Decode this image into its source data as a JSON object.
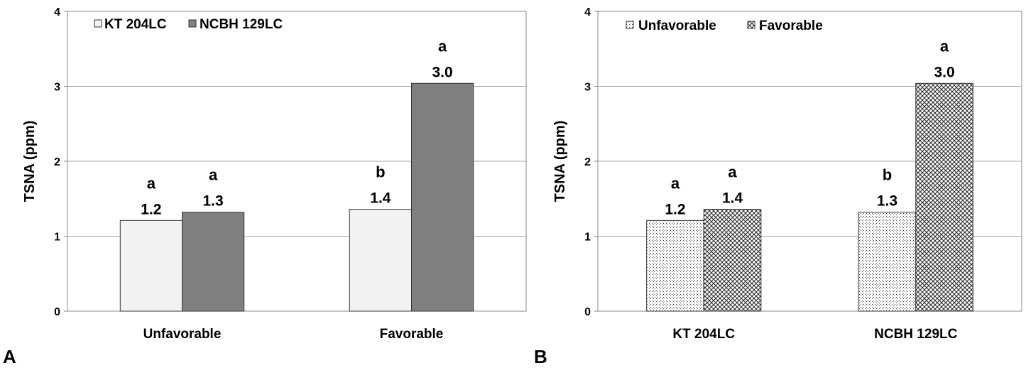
{
  "chart_data": [
    {
      "type": "bar",
      "panel": "A",
      "ylabel": "TSNA (ppm)",
      "ylim": [
        0,
        4
      ],
      "yticks": [
        "0",
        "1",
        "2",
        "3",
        "4"
      ],
      "grid": true,
      "legend_position": "top-left",
      "categories": [
        "Unfavorable",
        "Favorable"
      ],
      "series": [
        {
          "name": "KT 204LC",
          "color": "#f2f2f2",
          "pattern": "solid",
          "values": [
            1.21,
            1.36
          ],
          "labels": [
            "1.2",
            "1.4"
          ],
          "letters": [
            "a",
            "b"
          ]
        },
        {
          "name": "NCBH 129LC",
          "color": "#808080",
          "pattern": "solid",
          "values": [
            1.32,
            3.04
          ],
          "labels": [
            "1.3",
            "3.0"
          ],
          "letters": [
            "a",
            "a"
          ]
        }
      ]
    },
    {
      "type": "bar",
      "panel": "B",
      "ylabel": "TSNA (ppm)",
      "ylim": [
        0,
        4
      ],
      "yticks": [
        "0",
        "1",
        "2",
        "3",
        "4"
      ],
      "grid": true,
      "legend_position": "top-left",
      "categories": [
        "KT 204LC",
        "NCBH 129LC"
      ],
      "series": [
        {
          "name": "Unfavorable",
          "color": "#ffffff",
          "pattern": "dots",
          "values": [
            1.21,
            1.32
          ],
          "labels": [
            "1.2",
            "1.3"
          ],
          "letters": [
            "a",
            "b"
          ]
        },
        {
          "name": "Favorable",
          "color": "#ffffff",
          "pattern": "checker",
          "values": [
            1.36,
            3.04
          ],
          "labels": [
            "1.4",
            "3.0"
          ],
          "letters": [
            "a",
            "a"
          ]
        }
      ]
    }
  ]
}
